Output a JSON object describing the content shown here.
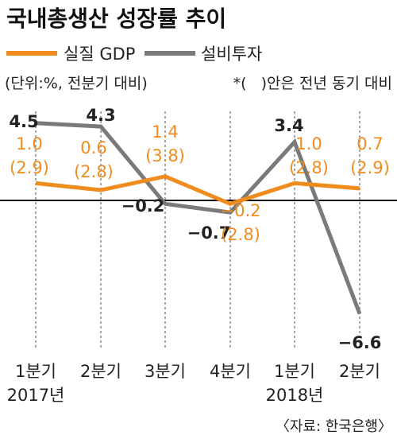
{
  "chart_data": {
    "type": "line",
    "title": "국내총생산 성장률 추이",
    "unit_note": "(단위:%, 전분기 대비)",
    "yoy_note": "*(   )안은 전년 동기 대비",
    "source": "〈자료: 한국은행〉",
    "categories": [
      "1분기",
      "2분기",
      "3분기",
      "4분기",
      "1분기",
      "2분기"
    ],
    "year_labels": [
      {
        "index": 0,
        "text": "2017년"
      },
      {
        "index": 4,
        "text": "2018년"
      }
    ],
    "series": [
      {
        "name": "실질 GDP",
        "color": "#f08c1e",
        "values": [
          1.0,
          0.6,
          1.4,
          -0.2,
          1.0,
          0.7
        ],
        "labels": [
          "1.0",
          "0.6",
          "1.4",
          "−0.2",
          "1.0",
          "0.7"
        ],
        "yoy_labels": [
          "(2.9)",
          "(2.8)",
          "(3.8)",
          "(2.8)",
          "(2.8)",
          "(2.9)"
        ]
      },
      {
        "name": "설비투자",
        "color": "#7a7a7a",
        "values": [
          4.5,
          4.3,
          -0.2,
          -0.7,
          3.4,
          -6.6
        ],
        "labels": [
          "4.5",
          "4.3",
          "−0.2",
          "−0.7",
          "3.4",
          "−6.6"
        ]
      }
    ],
    "ylim": [
      -7,
      5
    ],
    "grid": "vertical-dashed",
    "legend": "top-left"
  }
}
